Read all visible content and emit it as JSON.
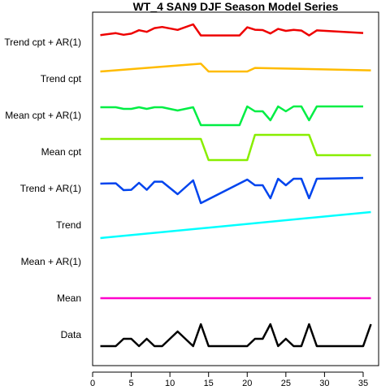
{
  "chart_data": {
    "type": "line",
    "title": "WT_4 SAN9 DJF Season Model Series",
    "xlabel": "",
    "ylabel": "",
    "xlim": [
      0,
      37
    ],
    "x_ticks": [
      0,
      5,
      10,
      15,
      20,
      25,
      30,
      35
    ],
    "grid": false,
    "legend": "none",
    "series": [
      {
        "name": "Trend cpt + AR(1)",
        "color": "#ee0000",
        "points": [
          [
            1,
            0.44
          ],
          [
            3,
            0.56
          ],
          [
            4,
            0.46
          ],
          [
            5,
            0.53
          ],
          [
            6,
            0.74
          ],
          [
            7,
            0.64
          ],
          [
            8,
            0.87
          ],
          [
            9,
            0.94
          ],
          [
            11,
            0.76
          ],
          [
            13,
            1.1
          ],
          [
            14,
            0.42
          ],
          [
            19,
            0.42
          ],
          [
            20,
            0.92
          ],
          [
            21,
            0.77
          ],
          [
            22,
            0.75
          ],
          [
            23,
            0.54
          ],
          [
            24,
            0.82
          ],
          [
            25,
            0.7
          ],
          [
            26,
            0.76
          ],
          [
            27,
            0.72
          ],
          [
            28,
            0.42
          ],
          [
            29,
            0.73
          ],
          [
            35,
            0.57
          ]
        ]
      },
      {
        "name": "Trend cpt",
        "color": "#ffbb00",
        "points": [
          [
            1,
            0.45
          ],
          [
            14,
            0.93
          ],
          [
            15,
            0.45
          ],
          [
            20,
            0.45
          ],
          [
            21,
            0.67
          ],
          [
            36,
            0.52
          ]
        ]
      },
      {
        "name": "Mean cpt + AR(1)",
        "color": "#00ee44",
        "points": [
          [
            1,
            0.5
          ],
          [
            3,
            0.5
          ],
          [
            4,
            0.4
          ],
          [
            5,
            0.4
          ],
          [
            6,
            0.5
          ],
          [
            7,
            0.4
          ],
          [
            8,
            0.5
          ],
          [
            9,
            0.5
          ],
          [
            11,
            0.3
          ],
          [
            13,
            0.5
          ],
          [
            14,
            -0.6
          ],
          [
            19,
            -0.6
          ],
          [
            20,
            0.55
          ],
          [
            21,
            0.25
          ],
          [
            22,
            0.25
          ],
          [
            23,
            -0.3
          ],
          [
            24,
            0.55
          ],
          [
            25,
            0.25
          ],
          [
            26,
            0.55
          ],
          [
            27,
            0.55
          ],
          [
            28,
            -0.3
          ],
          [
            29,
            0.55
          ],
          [
            35,
            0.55
          ]
        ]
      },
      {
        "name": "Mean cpt",
        "color": "#88ee00",
        "points": [
          [
            1,
            0.8
          ],
          [
            14,
            0.8
          ],
          [
            15,
            -0.5
          ],
          [
            20,
            -0.5
          ],
          [
            21,
            1.05
          ],
          [
            28,
            1.05
          ],
          [
            29,
            -0.2
          ],
          [
            36,
            -0.2
          ]
        ]
      },
      {
        "name": "Trend + AR(1)",
        "color": "#0044ee",
        "points": [
          [
            1,
            0.3
          ],
          [
            3,
            0.32
          ],
          [
            4,
            -0.1
          ],
          [
            5,
            -0.08
          ],
          [
            6,
            0.35
          ],
          [
            7,
            -0.08
          ],
          [
            8,
            0.42
          ],
          [
            9,
            0.42
          ],
          [
            11,
            -0.35
          ],
          [
            13,
            0.5
          ],
          [
            14,
            -0.9
          ],
          [
            20,
            0.55
          ],
          [
            21,
            0.2
          ],
          [
            22,
            0.2
          ],
          [
            23,
            -0.6
          ],
          [
            24,
            0.6
          ],
          [
            25,
            0.2
          ],
          [
            26,
            0.6
          ],
          [
            27,
            0.6
          ],
          [
            28,
            -0.6
          ],
          [
            29,
            0.6
          ],
          [
            35,
            0.65
          ]
        ]
      },
      {
        "name": "Trend",
        "color": "#00ffff",
        "points": [
          [
            1,
            -0.8
          ],
          [
            36,
            0.8
          ]
        ]
      },
      {
        "name": "Mean + AR(1)",
        "color": "#ff3333",
        "points": []
      },
      {
        "name": "Mean",
        "color": "#ff00cc",
        "points": [
          [
            1,
            0
          ],
          [
            36,
            0
          ]
        ]
      },
      {
        "name": "Data",
        "color": "#000000",
        "points": [
          [
            1,
            -0.7
          ],
          [
            3,
            -0.7
          ],
          [
            4,
            -0.25
          ],
          [
            5,
            -0.25
          ],
          [
            6,
            -0.7
          ],
          [
            7,
            -0.25
          ],
          [
            8,
            -0.7
          ],
          [
            9,
            -0.7
          ],
          [
            11,
            0.2
          ],
          [
            13,
            -0.7
          ],
          [
            14,
            0.65
          ],
          [
            15,
            -0.7
          ],
          [
            20,
            -0.7
          ],
          [
            21,
            -0.25
          ],
          [
            22,
            -0.25
          ],
          [
            23,
            0.65
          ],
          [
            24,
            -0.7
          ],
          [
            25,
            -0.25
          ],
          [
            26,
            -0.7
          ],
          [
            27,
            -0.7
          ],
          [
            28,
            0.65
          ],
          [
            29,
            -0.7
          ],
          [
            35,
            -0.7
          ],
          [
            36,
            0.65
          ]
        ]
      }
    ]
  }
}
